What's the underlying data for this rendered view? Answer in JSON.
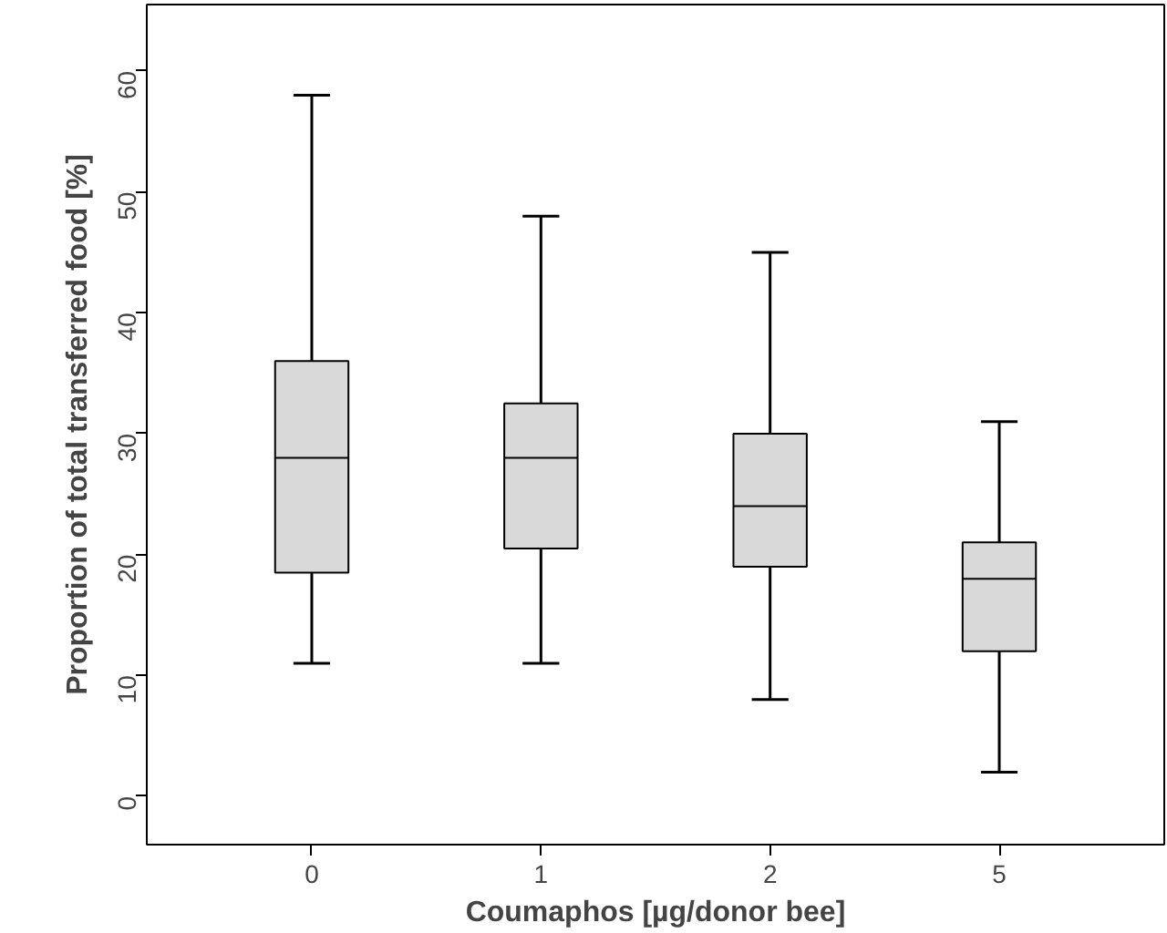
{
  "chart_data": {
    "type": "box",
    "xlabel": "Coumaphos [µg/donor bee]",
    "ylabel": "Proportion of total transferred food [%]",
    "categories": [
      "0",
      "1",
      "2",
      "5"
    ],
    "color": "#d9d9d9",
    "ylim": [
      -4,
      65.5
    ],
    "yticks": [
      0,
      10,
      20,
      30,
      40,
      50,
      60
    ],
    "boxes": [
      {
        "low": 11,
        "q1": 18.5,
        "median": 28,
        "q3": 36,
        "high": 58
      },
      {
        "low": 11,
        "q1": 20.5,
        "median": 28,
        "q3": 32.5,
        "high": 48
      },
      {
        "low": 8,
        "q1": 19,
        "median": 24,
        "q3": 30,
        "high": 45
      },
      {
        "low": 2,
        "q1": 12,
        "median": 18,
        "q3": 21,
        "high": 31
      }
    ]
  }
}
